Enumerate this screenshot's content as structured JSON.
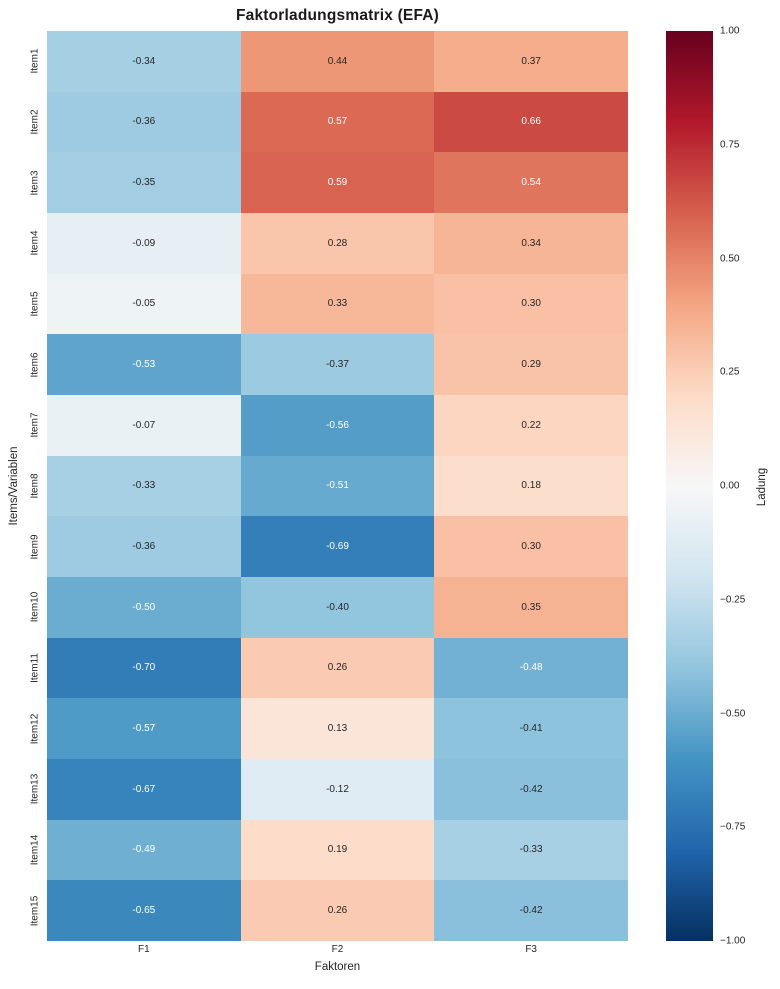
{
  "chart_data": {
    "type": "heatmap",
    "title": "Faktorladungsmatrix (EFA)",
    "xlabel": "Faktoren",
    "ylabel": "Items/Variablen",
    "columns": [
      "F1",
      "F2",
      "F3"
    ],
    "rows": [
      "Item1",
      "Item2",
      "Item3",
      "Item4",
      "Item5",
      "Item6",
      "Item7",
      "Item8",
      "Item9",
      "Item10",
      "Item11",
      "Item12",
      "Item13",
      "Item14",
      "Item15"
    ],
    "values": [
      [
        -0.34,
        0.44,
        0.37
      ],
      [
        -0.36,
        0.57,
        0.66
      ],
      [
        -0.35,
        0.59,
        0.54
      ],
      [
        -0.09,
        0.28,
        0.34
      ],
      [
        -0.05,
        0.33,
        0.3
      ],
      [
        -0.53,
        -0.37,
        0.29
      ],
      [
        -0.07,
        -0.56,
        0.22
      ],
      [
        -0.33,
        -0.51,
        0.18
      ],
      [
        -0.36,
        -0.69,
        0.3
      ],
      [
        -0.5,
        -0.4,
        0.35
      ],
      [
        -0.7,
        0.26,
        -0.48
      ],
      [
        -0.57,
        0.13,
        -0.41
      ],
      [
        -0.67,
        -0.12,
        -0.42
      ],
      [
        -0.49,
        0.19,
        -0.33
      ],
      [
        -0.65,
        0.26,
        -0.42
      ]
    ],
    "vmin": -1,
    "vmax": 1,
    "value_format_decimals": 2,
    "colormap": "RdBu_r",
    "colormap_anchors": [
      "#053061",
      "#2166ac",
      "#4393c3",
      "#92c5de",
      "#d1e5f0",
      "#f7f7f7",
      "#fddbc7",
      "#f4a582",
      "#d6604d",
      "#b2182b",
      "#67001f"
    ],
    "grid": false,
    "colorbar": {
      "label": "Ladung",
      "ticks": [
        "1.00",
        "0.75",
        "0.50",
        "0.25",
        "0.00",
        "−0.25",
        "−0.50",
        "−0.75",
        "−1.00"
      ]
    }
  },
  "colors": {
    "background": "#ffffff",
    "title_text": "#1a1a1a",
    "tick_text": "#262626",
    "annot_dark": "#262626",
    "annot_light": "#ffffff"
  }
}
